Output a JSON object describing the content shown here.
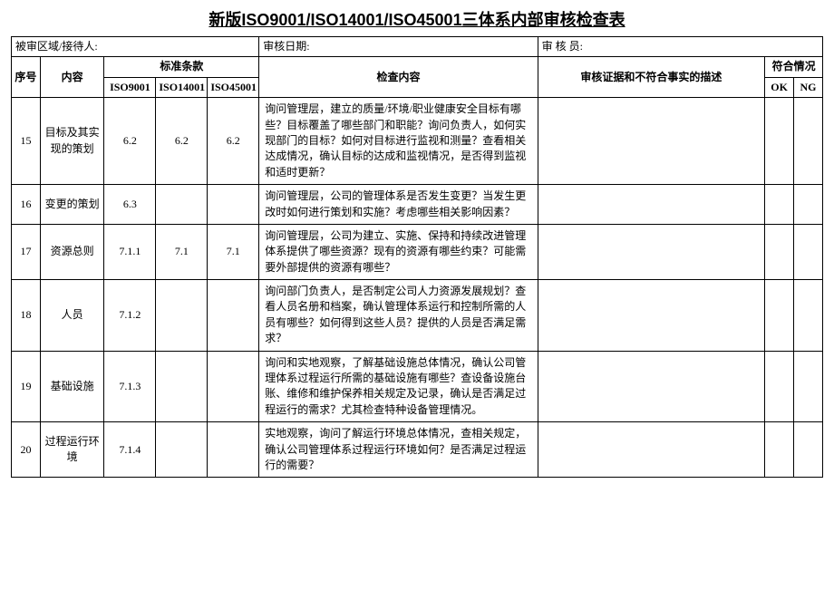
{
  "title": "新版ISO9001/ISO14001/ISO45001三体系内部审核检查表",
  "header_row": {
    "audited_area_label": "被审区域/接待人:",
    "audit_date_label": "审核日期:",
    "auditor_label": "审 核 员:"
  },
  "columns": {
    "seq": "序号",
    "content": "内容",
    "standards": "标准条款",
    "iso9001": "ISO9001",
    "iso14001": "ISO14001",
    "iso45001": "ISO45001",
    "check_content": "检查内容",
    "evidence": "审核证据和不符合事实的描述",
    "conformance": "符合情况",
    "ok": "OK",
    "ng": "NG"
  },
  "rows": [
    {
      "seq": "15",
      "content": "目标及其实现的策划",
      "iso9001": "6.2",
      "iso14001": "6.2",
      "iso45001": "6.2",
      "check": "询问管理层，建立的质量/环境/职业健康安全目标有哪些？目标覆盖了哪些部门和职能？询问负责人，如何实现部门的目标？如何对目标进行监视和测量？查看相关达成情况，确认目标的达成和监视情况，是否得到监视和适时更新？",
      "evidence": "",
      "ok": "",
      "ng": ""
    },
    {
      "seq": "16",
      "content": "变更的策划",
      "iso9001": "6.3",
      "iso14001": "",
      "iso45001": "",
      "check": "询问管理层，公司的管理体系是否发生变更？当发生更改时如何进行策划和实施？考虑哪些相关影响因素？",
      "evidence": "",
      "ok": "",
      "ng": ""
    },
    {
      "seq": "17",
      "content": "资源总则",
      "iso9001": "7.1.1",
      "iso14001": "7.1",
      "iso45001": "7.1",
      "check": "询问管理层，公司为建立、实施、保持和持续改进管理体系提供了哪些资源？现有的资源有哪些约束？可能需要外部提供的资源有哪些？",
      "evidence": "",
      "ok": "",
      "ng": ""
    },
    {
      "seq": "18",
      "content": "人员",
      "iso9001": "7.1.2",
      "iso14001": "",
      "iso45001": "",
      "check": "询问部门负责人，是否制定公司人力资源发展规划？查看人员名册和档案，确认管理体系运行和控制所需的人员有哪些？如何得到这些人员？提供的人员是否满足需求？",
      "evidence": "",
      "ok": "",
      "ng": ""
    },
    {
      "seq": "19",
      "content": "基础设施",
      "iso9001": "7.1.3",
      "iso14001": "",
      "iso45001": "",
      "check": "询问和实地观察，了解基础设施总体情况，确认公司管理体系过程运行所需的基础设施有哪些？查设备设施台账、维修和维护保养相关规定及记录，确认是否满足过程运行的需求？尤其检查特种设备管理情况。",
      "evidence": "",
      "ok": "",
      "ng": ""
    },
    {
      "seq": "20",
      "content": "过程运行环境",
      "iso9001": "7.1.4",
      "iso14001": "",
      "iso45001": "",
      "check": "实地观察，询问了解运行环境总体情况，查相关规定，确认公司管理体系过程运行环境如何？是否满足过程运行的需要？",
      "evidence": "",
      "ok": "",
      "ng": ""
    }
  ]
}
